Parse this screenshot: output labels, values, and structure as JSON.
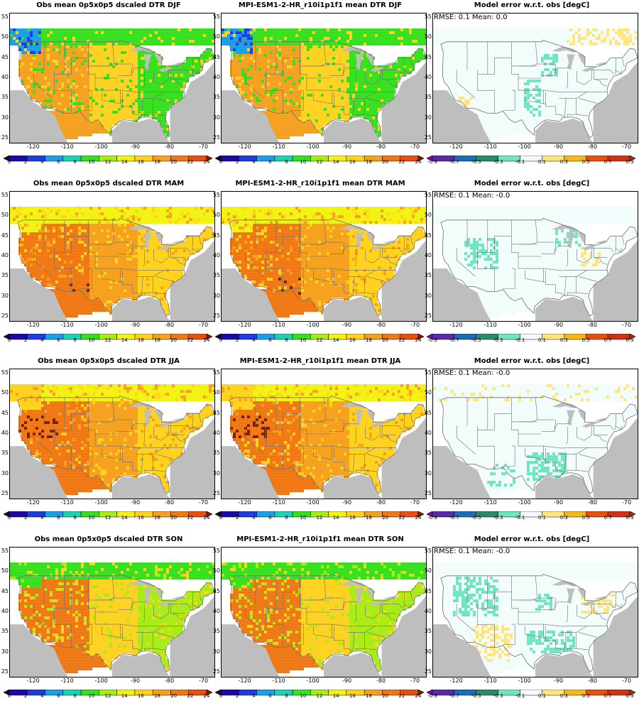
{
  "rows": [
    {
      "season": "DJF",
      "panels": [
        {
          "kind": "obs",
          "title": "Obs mean 0p5x0p5 dscaled DTR DJF"
        },
        {
          "kind": "model",
          "title": "MPI-ESM1-2-HR_r10i1p1f1 mean DTR DJF"
        },
        {
          "kind": "error",
          "title": "Model error w.r.t. obs [degC]",
          "stats": "RMSE: 0.1  Mean: 0.0"
        }
      ]
    },
    {
      "season": "MAM",
      "panels": [
        {
          "kind": "obs",
          "title": "Obs mean 0p5x0p5 dscaled DTR MAM"
        },
        {
          "kind": "model",
          "title": "MPI-ESM1-2-HR_r10i1p1f1 mean DTR MAM"
        },
        {
          "kind": "error",
          "title": "Model error w.r.t. obs [degC]",
          "stats": "RMSE: 0.1  Mean: -0.0"
        }
      ]
    },
    {
      "season": "JJA",
      "panels": [
        {
          "kind": "obs",
          "title": "Obs mean 0p5x0p5 dscaled DTR JJA"
        },
        {
          "kind": "model",
          "title": "MPI-ESM1-2-HR_r10i1p1f1 mean DTR JJA"
        },
        {
          "kind": "error",
          "title": "Model error w.r.t. obs [degC]",
          "stats": "RMSE: 0.1  Mean: -0.0"
        }
      ]
    },
    {
      "season": "SON",
      "panels": [
        {
          "kind": "obs",
          "title": "Obs mean 0p5x0p5 dscaled DTR SON"
        },
        {
          "kind": "model",
          "title": "MPI-ESM1-2-HR_r10i1p1f1 mean DTR SON"
        },
        {
          "kind": "error",
          "title": "Model error w.r.t. obs [degC]",
          "stats": "RMSE: 0.1  Mean: -0.0"
        }
      ]
    }
  ],
  "axes": {
    "lat_ticks": [
      "25",
      "30",
      "35",
      "40",
      "45",
      "50",
      "55"
    ],
    "lon_ticks_a": [
      "-120",
      "-110",
      "-100",
      "-90",
      "-80",
      "-70"
    ],
    "lon_ticks_b": [
      "-120",
      "-110",
      "-100",
      "-90",
      "-80",
      "-70"
    ]
  },
  "colorbars": {
    "dtr": {
      "labels": [
        "0",
        "2",
        "4",
        "6",
        "8",
        "10",
        "12",
        "14",
        "16",
        "18",
        "20",
        "22",
        "24"
      ],
      "colors": [
        "#2a0033",
        "#1c0aa8",
        "#1e3ce0",
        "#19a0e8",
        "#1cd2b4",
        "#35e01c",
        "#a8ec14",
        "#f2f214",
        "#ffd21e",
        "#f5a01e",
        "#f07814",
        "#e8500f",
        "#7a2008"
      ]
    },
    "error": {
      "labels": [
        "-0.9",
        "-0.7",
        "-0.5",
        "-0.3",
        "-0.1",
        "0.1",
        "0.3",
        "0.5",
        "0.7",
        "0.9"
      ],
      "colors": [
        "#8e00b4",
        "#5a2aaa",
        "#1b6eb4",
        "#2a8a6a",
        "#6ee6c0",
        "#f2fcfb",
        "#ffe67a",
        "#f5b814",
        "#e8500f",
        "#d23214",
        "#8a3c14"
      ]
    }
  },
  "background": {
    "land_missing": "#bebebe",
    "ocean": "#bebebe",
    "lakes": "#bebebe",
    "boundary": "#6e6e6e"
  },
  "season_patterns": {
    "DJF": {
      "west": "#f5a01e",
      "central": "#ffd21e",
      "east": "#35e01c",
      "north": "#35e01c",
      "far_nw": "#19a0e8"
    },
    "MAM": {
      "west": "#f07814",
      "central": "#f5a01e",
      "east": "#ffd21e",
      "north": "#f2f214",
      "far_nw": "#f2f214"
    },
    "JJA": {
      "west": "#f07814",
      "central": "#f5a01e",
      "east": "#ffd21e",
      "north": "#f2f214",
      "far_nw": "#ffd21e"
    },
    "SON": {
      "west": "#f07814",
      "central": "#ffd21e",
      "east": "#a8ec14",
      "north": "#35e01c",
      "far_nw": "#35e01c"
    }
  }
}
